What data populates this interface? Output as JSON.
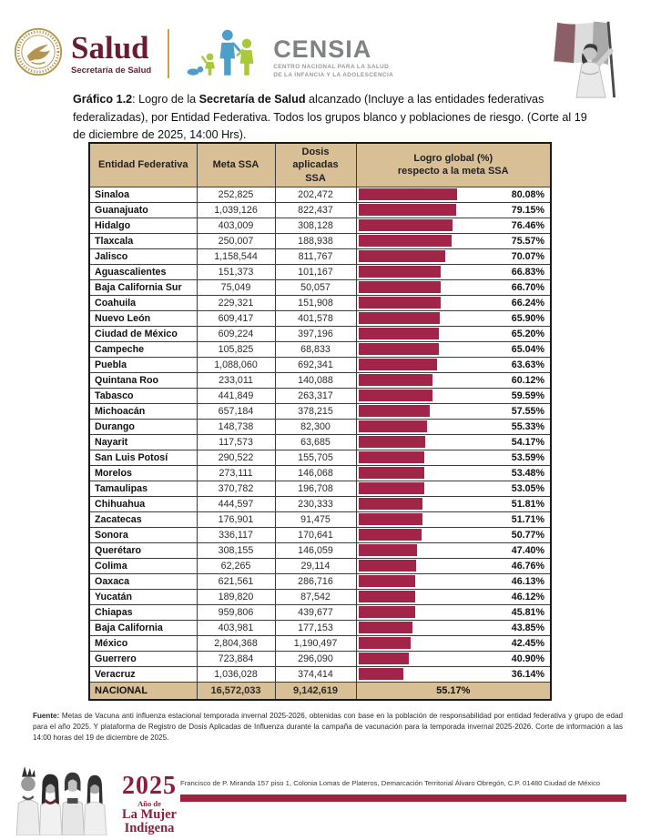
{
  "header": {
    "salud": {
      "name": "Salud",
      "subtitle": "Secretaría de Salud"
    },
    "censia": {
      "name": "CENSIA",
      "subtitle": "CENTRO NACIONAL PARA LA SALUD\nDE LA INFANCIA Y LA ADOLESCENCIA"
    }
  },
  "title": {
    "label_bold": "Gráfico 1.2",
    "mid": ": Logro de la ",
    "org_bold": "Secretaría de Salud",
    "rest": " alcanzado (Incluye a las entidades federativas federalizadas), por Entidad Federativa. Todos los grupos blanco y poblaciones de riesgo. (Corte al 19 de diciembre de 2025, 14:00 Hrs)."
  },
  "table": {
    "columns": [
      "Entidad Federativa",
      "Meta SSA",
      "Dosis aplicadas\nSSA",
      "Logro global (%)\nrespecto a la meta SSA"
    ],
    "total_label": "NACIONAL"
  },
  "chart_data": {
    "type": "bar",
    "orientation": "horizontal",
    "title": "Gráfico 1.2: Logro de la Secretaría de Salud alcanzado (Incluye a las entidades federativas federalizadas), por Entidad Federativa. Todos los grupos blanco y poblaciones de riesgo. (Corte al 19 de diciembre de 2025, 14:00 Hrs).",
    "xlabel": "Logro global (%) respecto a la meta SSA",
    "xlim": [
      0,
      100
    ],
    "bar_color": "#A32449",
    "legend_position": "none",
    "grid": false,
    "categories": [
      "Sinaloa",
      "Guanajuato",
      "Hidalgo",
      "Tlaxcala",
      "Jalisco",
      "Aguascalientes",
      "Baja California Sur",
      "Coahuila",
      "Nuevo León",
      "Ciudad de México",
      "Campeche",
      "Puebla",
      "Quintana Roo",
      "Tabasco",
      "Michoacán",
      "Durango",
      "Nayarit",
      "San Luis Potosí",
      "Morelos",
      "Tamaulipas",
      "Chihuahua",
      "Zacatecas",
      "Sonora",
      "Querétaro",
      "Colima",
      "Oaxaca",
      "Yucatán",
      "Chiapas",
      "Baja California",
      "México",
      "Guerrero",
      "Veracruz"
    ],
    "series": [
      {
        "name": "Meta SSA",
        "values": [
          252825,
          1039126,
          403009,
          250007,
          1158544,
          151373,
          75049,
          229321,
          609417,
          609224,
          105825,
          1088060,
          233011,
          441849,
          657184,
          148738,
          117573,
          290522,
          273111,
          370782,
          444597,
          176901,
          336117,
          308155,
          62265,
          621561,
          189820,
          959806,
          403981,
          2804368,
          723884,
          1036028
        ]
      },
      {
        "name": "Dosis aplicadas SSA",
        "values": [
          202472,
          822437,
          308128,
          188938,
          811767,
          101167,
          50057,
          151908,
          401578,
          397196,
          68833,
          692341,
          140088,
          263317,
          378215,
          82300,
          63685,
          155705,
          146068,
          196708,
          230333,
          91475,
          170641,
          146059,
          29114,
          286716,
          87542,
          439677,
          177153,
          1190497,
          296090,
          374414
        ]
      },
      {
        "name": "Logro global (%) respecto a la meta SSA",
        "values": [
          80.08,
          79.15,
          76.46,
          75.57,
          70.07,
          66.83,
          66.7,
          66.24,
          65.9,
          65.2,
          65.04,
          63.63,
          60.12,
          59.59,
          57.55,
          55.33,
          54.17,
          53.59,
          53.48,
          53.05,
          51.81,
          51.71,
          50.77,
          47.4,
          46.76,
          46.13,
          46.12,
          45.81,
          43.85,
          42.45,
          40.9,
          36.14
        ]
      }
    ],
    "total": {
      "name": "NACIONAL",
      "meta": 16572033,
      "dosis": 9142619,
      "logro_pct": 55.17
    }
  },
  "fuente": {
    "label_bold": "Fuente:",
    "text": " Metas de Vacuna anti influenza estacional temporada invernal 2025-2026, obtenidas con base en la población de responsabilidad por entidad federativa y grupo de edad para el año 2025. Y plataforma de Registro de Dosis Aplicadas de Influenza durante la campaña de vacunación para la temporada invernal 2025-2026. Corte de información a las 14:00 horas del 19 de diciembre de 2025."
  },
  "footer": {
    "year": "2025",
    "year_line1": "Año de",
    "year_line2": "La Mujer",
    "year_line3": "Indígena",
    "address": "Francisco de P. Miranda 157 piso 1, Colonia Lomas de Plateros, Demarcación Territorial Álvaro Obregón, C.P. 01480 Ciudad de México"
  },
  "colors": {
    "brand_maroon": "#9F2241",
    "salud_maroon": "#691C32",
    "bar": "#A32449",
    "header_tan": "#D9BF96",
    "censia_blue": "#4E9FC7",
    "censia_green": "#A8C93A",
    "gold": "#C9A24B"
  }
}
